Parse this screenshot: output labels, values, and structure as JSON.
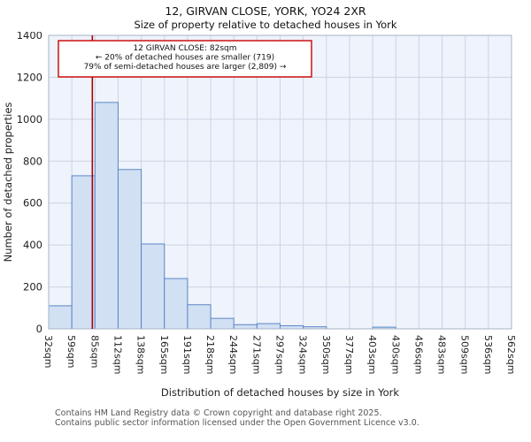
{
  "title": "12, GIRVAN CLOSE, YORK, YO24 2XR",
  "subtitle": "Size of property relative to detached houses in York",
  "annotation": {
    "lines": [
      "12 GIRVAN CLOSE: 82sqm",
      "← 20% of detached houses are smaller (719)",
      "79% of semi-detached houses are larger (2,809) →"
    ],
    "border_color": "#cc0000"
  },
  "chart_data": {
    "type": "bar",
    "title": "12, GIRVAN CLOSE, YORK, YO24 2XR — Size of property relative to detached houses in York",
    "xlabel": "Distribution of detached houses by size in York",
    "ylabel": "Number of detached properties",
    "ylim": [
      0,
      1400
    ],
    "yticks": [
      0,
      200,
      400,
      600,
      800,
      1000,
      1200,
      1400
    ],
    "categories": [
      "32sqm",
      "59sqm",
      "85sqm",
      "112sqm",
      "138sqm",
      "165sqm",
      "191sqm",
      "218sqm",
      "244sqm",
      "271sqm",
      "297sqm",
      "324sqm",
      "350sqm",
      "377sqm",
      "403sqm",
      "430sqm",
      "456sqm",
      "483sqm",
      "509sqm",
      "536sqm",
      "562sqm"
    ],
    "values": [
      110,
      730,
      1080,
      760,
      405,
      240,
      115,
      50,
      20,
      25,
      15,
      10,
      0,
      0,
      8,
      0,
      0,
      0,
      0,
      0
    ],
    "marker": {
      "value_sqm": 82,
      "color": "#aa0000"
    },
    "bin_start": 32,
    "bin_size": 26.5,
    "grid": true,
    "legend": false,
    "plot_bg": "#eff3fb",
    "grid_color": "#ccd4e3",
    "bar_fill": "#d2e0f4",
    "bar_stroke": "#5b87c5",
    "axis_text_color": "#222",
    "border_color": "#a7b2c6"
  },
  "footer": {
    "line1": "Contains HM Land Registry data © Crown copyright and database right 2025.",
    "line2": "Contains public sector information licensed under the Open Government Licence v3.0."
  }
}
